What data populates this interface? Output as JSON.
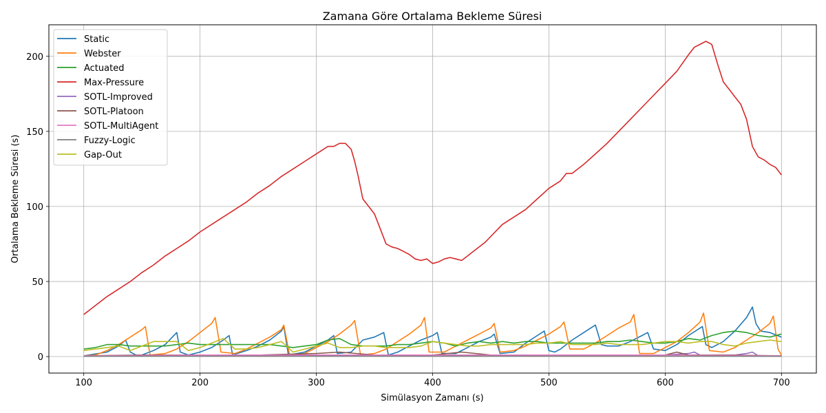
{
  "chart_data": {
    "type": "line",
    "title": "Zamana Göre Ortalama Bekleme Süresi",
    "xlabel": "Simülasyon Zamanı (s)",
    "ylabel": "Ortalama Bekleme Süresi (s)",
    "xlim": [
      70,
      730
    ],
    "ylim": [
      -11,
      221
    ],
    "xticks": [
      100,
      200,
      300,
      400,
      500,
      600,
      700
    ],
    "yticks": [
      0,
      50,
      100,
      150,
      200
    ],
    "grid": true,
    "legend_position": "top-left",
    "series": [
      {
        "name": "Static",
        "color": "#1f77b4",
        "x": [
          100,
          120,
          130,
          136,
          140,
          145,
          150,
          160,
          170,
          180,
          183,
          190,
          200,
          210,
          220,
          225,
          228,
          240,
          250,
          260,
          270,
          272,
          276,
          290,
          300,
          310,
          315,
          318,
          330,
          340,
          350,
          358,
          362,
          370,
          380,
          390,
          400,
          404,
          408,
          420,
          430,
          440,
          450,
          453,
          458,
          470,
          480,
          490,
          496,
          500,
          505,
          510,
          520,
          530,
          540,
          545,
          550,
          560,
          570,
          580,
          585,
          590,
          600,
          610,
          620,
          632,
          635,
          640,
          650,
          660,
          670,
          675,
          678,
          682,
          690,
          700
        ],
        "y": [
          0.5,
          3,
          7,
          11,
          3,
          1,
          1,
          4,
          8,
          16,
          3,
          1,
          3,
          6,
          11,
          14,
          1,
          4,
          7,
          11,
          17,
          20,
          1,
          3,
          7,
          11,
          14,
          2,
          3,
          11,
          13,
          16,
          1,
          3,
          7,
          11,
          14,
          16,
          2,
          2,
          6,
          10,
          13,
          15,
          2,
          3,
          9,
          14,
          17,
          4,
          3,
          5,
          11,
          16,
          21,
          8,
          7,
          7,
          10,
          14,
          16,
          5,
          4,
          8,
          14,
          20,
          8,
          6,
          10,
          17,
          26,
          33,
          22,
          17,
          16,
          13
        ]
      },
      {
        "name": "Webster",
        "color": "#ff7f0e",
        "x": [
          100,
          110,
          120,
          130,
          140,
          150,
          153,
          157,
          170,
          180,
          190,
          200,
          210,
          213,
          218,
          230,
          240,
          250,
          260,
          270,
          272,
          277,
          290,
          300,
          310,
          320,
          330,
          333,
          338,
          350,
          360,
          370,
          380,
          390,
          393,
          397,
          410,
          420,
          430,
          440,
          450,
          453,
          458,
          470,
          480,
          490,
          500,
          510,
          513,
          518,
          530,
          540,
          550,
          560,
          570,
          573,
          578,
          590,
          600,
          610,
          620,
          630,
          633,
          638,
          650,
          660,
          670,
          680,
          690,
          693,
          697,
          700
        ],
        "y": [
          0.5,
          1,
          4,
          8,
          13,
          18,
          20,
          1,
          2,
          5,
          10,
          16,
          22,
          26,
          3,
          2,
          5,
          9,
          13,
          18,
          21,
          1,
          2,
          6,
          10,
          15,
          21,
          24,
          1,
          2,
          5,
          10,
          15,
          21,
          26,
          3,
          3,
          7,
          11,
          15,
          19,
          22,
          3,
          4,
          7,
          11,
          15,
          20,
          23,
          5,
          5,
          9,
          14,
          19,
          23,
          28,
          2,
          2,
          6,
          10,
          16,
          23,
          29,
          4,
          3,
          6,
          11,
          16,
          22,
          27,
          5,
          1
        ]
      },
      {
        "name": "Actuated",
        "color": "#2ca02c",
        "x": [
          100,
          110,
          120,
          130,
          140,
          150,
          160,
          170,
          180,
          190,
          200,
          210,
          220,
          230,
          240,
          250,
          260,
          270,
          280,
          290,
          300,
          310,
          320,
          330,
          340,
          350,
          360,
          370,
          380,
          390,
          400,
          410,
          420,
          430,
          440,
          450,
          460,
          470,
          480,
          490,
          500,
          510,
          520,
          530,
          540,
          550,
          560,
          570,
          580,
          590,
          600,
          610,
          620,
          630,
          640,
          650,
          660,
          670,
          680,
          690,
          700
        ],
        "y": [
          5,
          6,
          8,
          8,
          7,
          7,
          7,
          7,
          8,
          9,
          8,
          8,
          8,
          8,
          8,
          8,
          8,
          7,
          6,
          7,
          8,
          11,
          12,
          8,
          7,
          7,
          7,
          8,
          8,
          9,
          10,
          9,
          7,
          9,
          10,
          9,
          10,
          9,
          10,
          10,
          9,
          9,
          9,
          9,
          9,
          10,
          10,
          11,
          10,
          9,
          9,
          10,
          12,
          11,
          14,
          16,
          17,
          16,
          14,
          13,
          15
        ]
      },
      {
        "name": "Max-Pressure",
        "color": "#d62728",
        "x": [
          100,
          110,
          120,
          130,
          140,
          150,
          160,
          170,
          180,
          190,
          200,
          210,
          220,
          230,
          240,
          250,
          260,
          270,
          280,
          290,
          300,
          310,
          315,
          320,
          325,
          330,
          333,
          336,
          340,
          345,
          350,
          355,
          360,
          365,
          370,
          375,
          380,
          385,
          390,
          395,
          400,
          405,
          410,
          415,
          420,
          425,
          430,
          435,
          440,
          445,
          450,
          455,
          460,
          470,
          480,
          490,
          500,
          510,
          515,
          520,
          530,
          540,
          550,
          560,
          570,
          580,
          590,
          600,
          610,
          620,
          625,
          630,
          635,
          640,
          645,
          650,
          655,
          660,
          665,
          670,
          675,
          680,
          685,
          690,
          695,
          700
        ],
        "y": [
          28,
          34,
          40,
          45,
          50,
          56,
          61,
          67,
          72,
          77,
          83,
          88,
          93,
          98,
          103,
          109,
          114,
          120,
          125,
          130,
          135,
          140,
          140,
          142,
          142,
          138,
          130,
          120,
          105,
          100,
          95,
          85,
          75,
          73,
          72,
          70,
          68,
          65,
          64,
          65,
          62,
          63,
          65,
          66,
          65,
          64,
          67,
          70,
          73,
          76,
          80,
          84,
          88,
          93,
          98,
          105,
          112,
          117,
          122,
          122,
          128,
          135,
          142,
          150,
          158,
          166,
          174,
          182,
          190,
          201,
          206,
          208,
          210,
          208,
          195,
          183,
          178,
          173,
          168,
          158,
          140,
          133,
          131,
          128,
          126,
          121
        ]
      },
      {
        "name": "SOTL-Improved",
        "color": "#9467bd",
        "x": [
          100,
          150,
          200,
          250,
          300,
          350,
          400,
          450,
          500,
          550,
          600,
          620,
          625,
          630,
          640,
          660,
          670,
          675,
          680,
          700
        ],
        "y": [
          0.3,
          0.5,
          1,
          0.5,
          0.5,
          0.5,
          1,
          0.5,
          1,
          1,
          1,
          2,
          3,
          1,
          1,
          1,
          2,
          3,
          0.5,
          0.3
        ]
      },
      {
        "name": "SOTL-Platoon",
        "color": "#8c564b",
        "x": [
          100,
          150,
          200,
          250,
          300,
          320,
          350,
          400,
          425,
          450,
          500,
          550,
          600,
          610,
          620,
          650,
          700
        ],
        "y": [
          0.5,
          1,
          1,
          1,
          2,
          3,
          1,
          1,
          3,
          1,
          1,
          1,
          1,
          3,
          1,
          1,
          0.5
        ]
      },
      {
        "name": "SOTL-MultiAgent",
        "color": "#e377c2",
        "x": [
          100,
          200,
          300,
          400,
          500,
          600,
          700
        ],
        "y": [
          0.5,
          1,
          1,
          1,
          1,
          1,
          0.5
        ]
      },
      {
        "name": "Fuzzy-Logic",
        "color": "#7f7f7f",
        "x": [
          100,
          200,
          300,
          400,
          500,
          600,
          700
        ],
        "y": [
          0.2,
          0.3,
          0.3,
          0.3,
          0.3,
          0.3,
          0.2
        ]
      },
      {
        "name": "Gap-Out",
        "color": "#bcbd22",
        "x": [
          100,
          110,
          120,
          130,
          140,
          150,
          160,
          170,
          180,
          190,
          200,
          210,
          220,
          230,
          240,
          250,
          260,
          270,
          280,
          290,
          300,
          310,
          320,
          330,
          340,
          350,
          360,
          370,
          380,
          390,
          400,
          410,
          420,
          430,
          440,
          450,
          460,
          470,
          480,
          490,
          500,
          510,
          520,
          530,
          540,
          550,
          560,
          570,
          580,
          590,
          600,
          610,
          620,
          630,
          640,
          650,
          660,
          670,
          680,
          690,
          700
        ],
        "y": [
          4,
          5,
          6,
          7,
          4,
          7,
          10,
          10,
          10,
          4,
          6,
          9,
          12,
          5,
          5,
          6,
          8,
          10,
          3,
          5,
          7,
          9,
          6,
          6,
          7,
          7,
          6,
          6,
          6,
          7,
          10,
          9,
          8,
          7,
          7,
          8,
          8,
          8,
          8,
          9,
          9,
          10,
          8,
          8,
          8,
          9,
          8,
          8,
          8,
          9,
          10,
          10,
          9,
          10,
          10,
          8,
          7,
          9,
          10,
          11,
          10
        ]
      }
    ]
  }
}
